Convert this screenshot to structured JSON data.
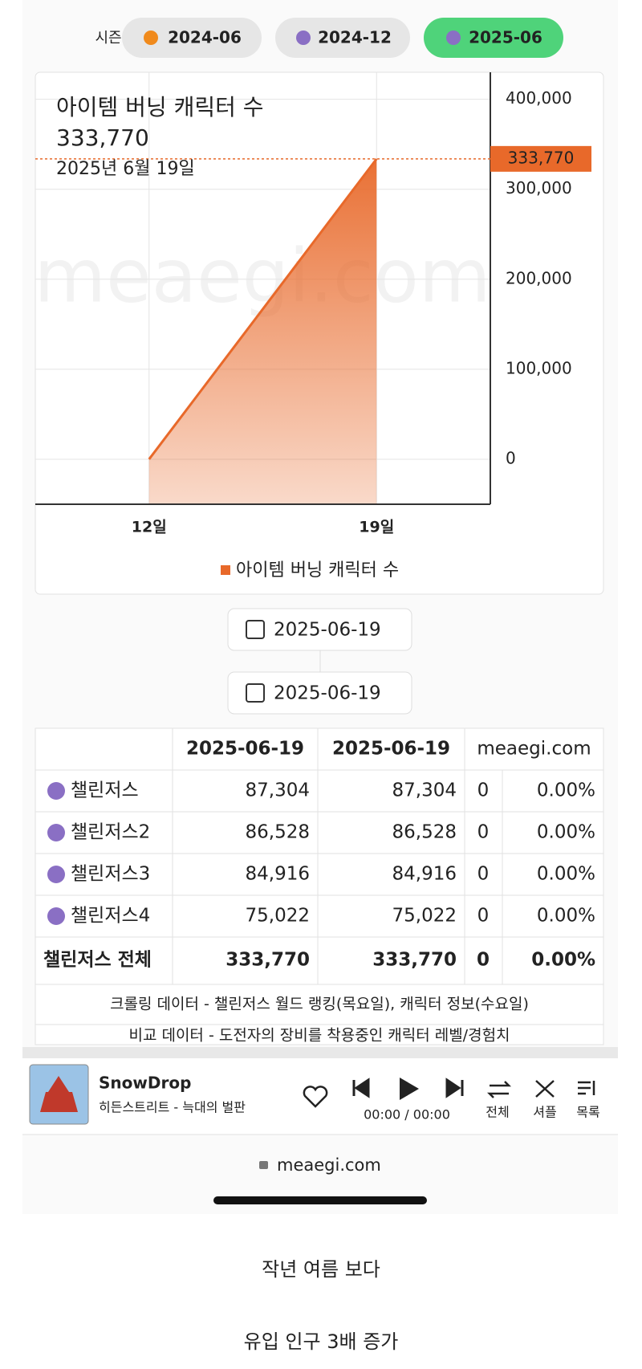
{
  "season": {
    "label": "시즌",
    "options": [
      "2024-06",
      "2024-12",
      "2025-06"
    ]
  },
  "chart_data": {
    "type": "area",
    "title": "아이템 버닝 캐릭터 수",
    "subtitle": "2025년 6월 19일",
    "watermark": "meaegi.com",
    "categories": [
      "12일",
      "19일"
    ],
    "series": [
      {
        "name": "아이템 버닝 캐릭터 수",
        "color": "#e8692a",
        "values": [
          0,
          333770
        ],
        "value_labels": [
          null,
          "333,770"
        ]
      }
    ],
    "ylim": [
      -50000,
      430000
    ],
    "yticks": [
      0,
      {
        "value": 100000,
        "label": "100,000"
      },
      {
        "value": 200000,
        "label": "200,000"
      },
      {
        "value": 300000,
        "label": "300,000"
      },
      {
        "value": 400000,
        "label": "400,000"
      }
    ],
    "grid": true,
    "legend": "bottom"
  },
  "date_range": [
    "2025-06-19",
    "2025-06-19"
  ],
  "table": {
    "header": [
      "2025-06-19",
      "2025-06-19",
      "meaegi.com"
    ],
    "rows": [
      [
        "챌린저스",
        "87,304",
        "87,304",
        "0",
        "0.00%"
      ],
      [
        "챌린저스2",
        "86,528",
        "86,528",
        "0",
        "0.00%"
      ],
      [
        "챌린저스3",
        "84,916",
        "84,916",
        "0",
        "0.00%"
      ],
      [
        "챌린저스4",
        "75,022",
        "75,022",
        "0",
        "0.00%"
      ]
    ],
    "total": [
      "챌린저스 전체",
      "333,770",
      "333,770",
      "0",
      "0.00%"
    ],
    "notes": [
      "크롤링 데이터 - 챌린저스 월드 랭킹(목요일), 캐릭터 정보(수요일)",
      "비교 데이터 - 도전자의 장비를 착용중인 캐릭터 레벨/경험치"
    ]
  },
  "player": {
    "title": "SnowDrop",
    "subtitle": "히든스트리트 - 늑대의 벌판",
    "time": "00:00 / 00:00",
    "buttons": [
      "전체",
      "셔플",
      "목록"
    ]
  },
  "url": "meaegi.com",
  "caption": [
    "작년 여름 보다",
    "유입 인구 3배 증가"
  ]
}
